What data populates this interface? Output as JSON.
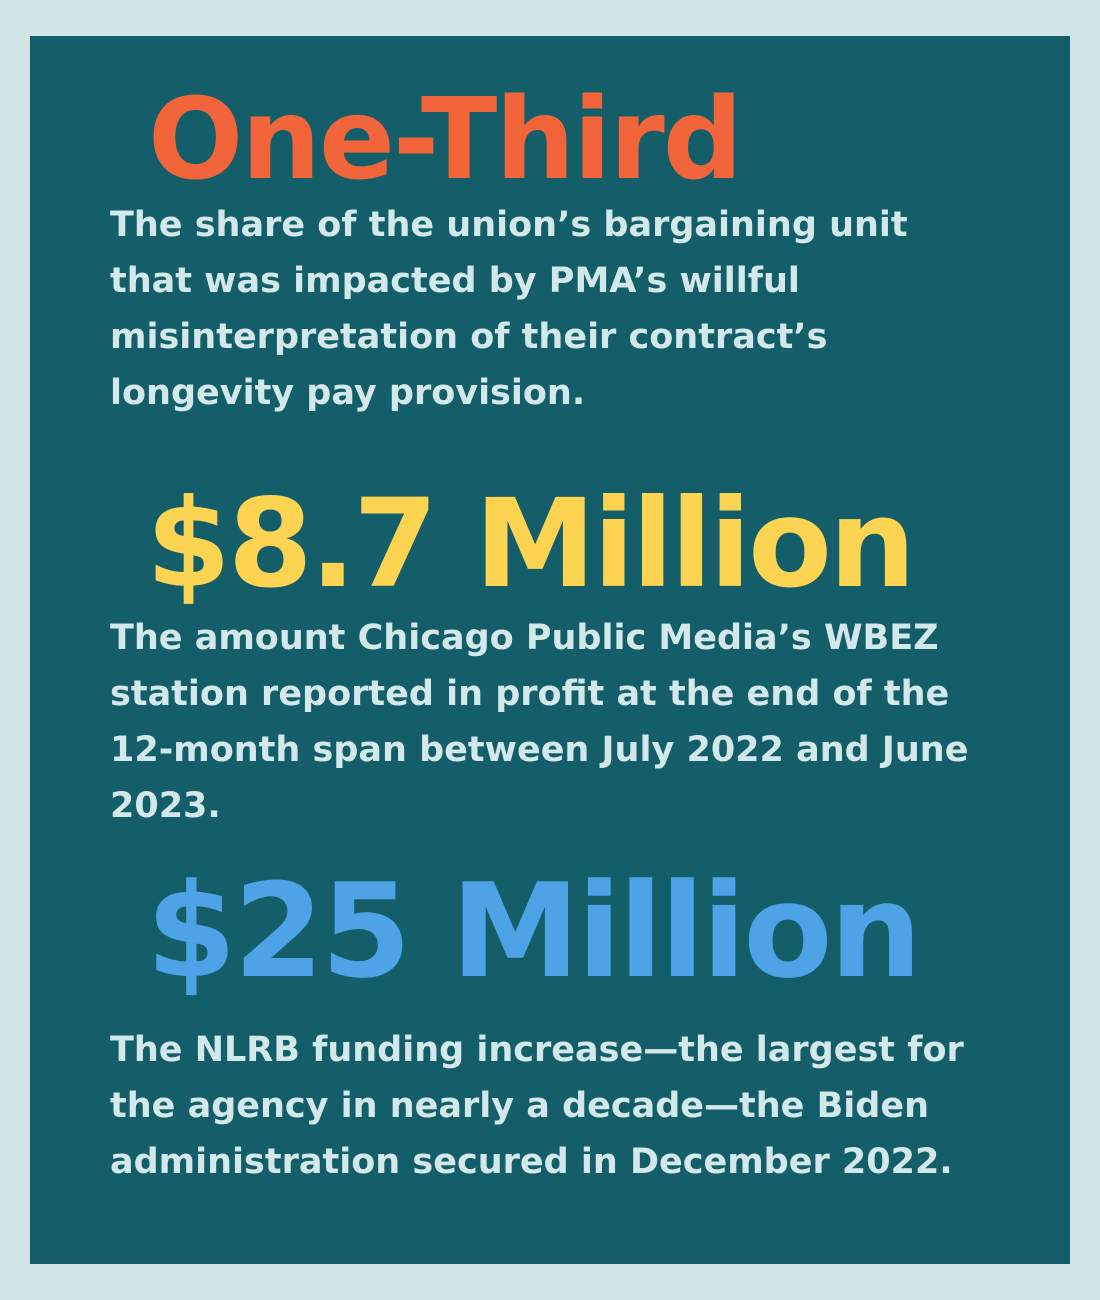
{
  "colors": {
    "background": "#d1e4e6",
    "panel": "#135e69",
    "caption_text": "#d3e8ea"
  },
  "stats": [
    {
      "figure": "One-Third",
      "figure_color": "#f2643a",
      "caption_lines": [
        "The share of the union’s bargaining unit",
        "that was impacted by PMA’s willful",
        "misinterpretation of their contract’s",
        "longevity pay provision."
      ]
    },
    {
      "figure": "$8.7 Million",
      "figure_color": "#fcd451",
      "caption_lines": [
        "The amount Chicago Public Media’s WBEZ",
        "station reported in profit at the end of the",
        "12-month span between July 2022 and June",
        "2023."
      ]
    },
    {
      "figure": "$25 Million",
      "figure_color": "#4ea3e6",
      "caption_lines": [
        "The NLRB funding increase—the largest for",
        "the agency in nearly a decade—the Biden",
        "administration secured in December 2022."
      ]
    }
  ]
}
